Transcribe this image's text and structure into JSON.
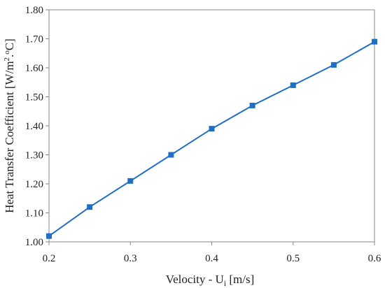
{
  "chart_data": {
    "type": "line",
    "title": "",
    "xlabel": "Velocity - U",
    "xlabel_sub": "i",
    "xlabel_unit": " [m/s]",
    "ylabel": "Heat Transfer Coefficient [W/m",
    "ylabel_sup": "2",
    "ylabel_sep": ".",
    "ylabel_deg": "o",
    "ylabel_end": "C]",
    "xlim": [
      0.2,
      0.6
    ],
    "ylim": [
      1.0,
      1.8
    ],
    "xticks": [
      "0.2",
      "0.3",
      "0.4",
      "0.5",
      "0.6"
    ],
    "yticks": [
      "1.00",
      "1.10",
      "1.20",
      "1.30",
      "1.40",
      "1.50",
      "1.60",
      "1.70",
      "1.80"
    ],
    "grid": false,
    "legend": "none",
    "series": [
      {
        "color": "#1f6fc5",
        "marker": "square",
        "x": [
          0.2,
          0.25,
          0.3,
          0.35,
          0.4,
          0.45,
          0.5,
          0.55,
          0.6
        ],
        "y": [
          1.02,
          1.12,
          1.21,
          1.3,
          1.39,
          1.47,
          1.54,
          1.61,
          1.69
        ]
      }
    ]
  }
}
